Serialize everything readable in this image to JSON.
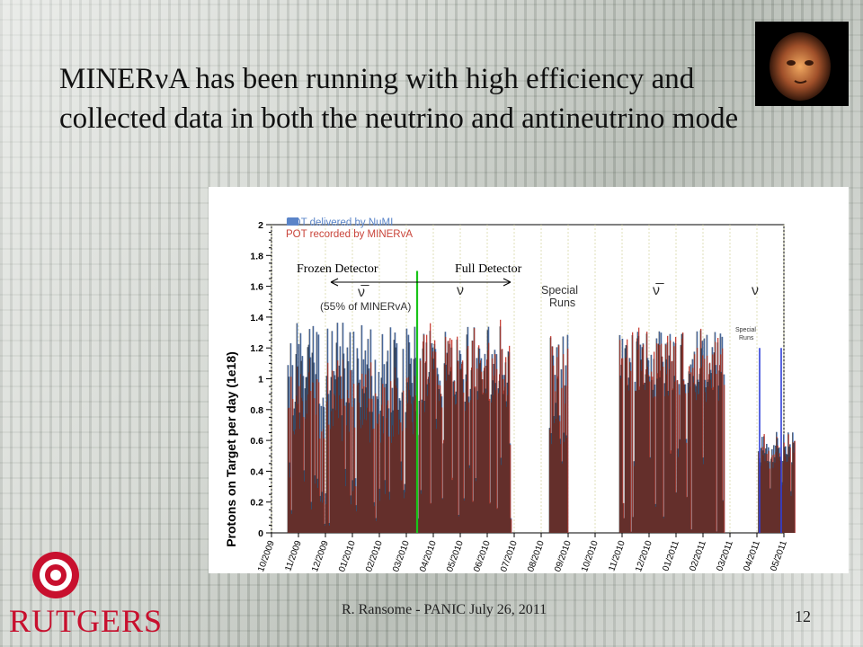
{
  "slide": {
    "title": "MINERνA has been running with high efficiency and collected data in both the neutrino and antineutrino mode",
    "footer": "R. Ransome - PANIC July 26, 2011",
    "page_number": "12",
    "logo_text": "RUTGERS"
  },
  "chart_data": {
    "type": "bar",
    "ylabel": "Protons on Target per day (1e18)",
    "ylim": [
      0,
      2
    ],
    "yticks": [
      "0",
      "0.2",
      "0.4",
      "0.6",
      "0.8",
      "1",
      "1.2",
      "1.4",
      "1.6",
      "1.8",
      "2"
    ],
    "xticks": [
      "10/2009",
      "11/2009",
      "12/2009",
      "01/2010",
      "02/2010",
      "03/2010",
      "04/2010",
      "05/2010",
      "06/2010",
      "07/2010",
      "08/2010",
      "09/2010",
      "10/2010",
      "11/2010",
      "12/2010",
      "01/2011",
      "02/2011",
      "03/2011",
      "04/2011",
      "05/2011"
    ],
    "legend": [
      "POT delivered by NuMI",
      "POT recorded by MINERvA"
    ],
    "legend_colors": [
      "#5a84c8",
      "#c9443a"
    ],
    "annotations": {
      "frozen": "Frozen Detector",
      "full": "Full Detector",
      "antinu1": "ν̅",
      "minerva_pct": "(55% of MINERvA)",
      "nu1": "ν",
      "special": "Special",
      "runs": "Runs",
      "antinu2": "ν̅",
      "nu2": "ν",
      "special_small": "Special",
      "runs_small": "Runs"
    },
    "grid": true,
    "green_line_month": 5.4,
    "blue_line_months": [
      18.1,
      18.9
    ],
    "segments": [
      {
        "start": 0.6,
        "end": 5.4,
        "base": 1.05,
        "amp": 0.32,
        "recorded_ratio": 0.8
      },
      {
        "start": 5.4,
        "end": 8.9,
        "base": 1.1,
        "amp": 0.25,
        "recorded_ratio": 0.97
      },
      {
        "start": 10.3,
        "end": 11.0,
        "base": 0.95,
        "amp": 0.35,
        "recorded_ratio": 0.95
      },
      {
        "start": 12.9,
        "end": 16.8,
        "base": 1.12,
        "amp": 0.2,
        "recorded_ratio": 0.97
      },
      {
        "start": 18.05,
        "end": 19.4,
        "base": 0.55,
        "amp": 0.12,
        "recorded_ratio": 0.95
      }
    ]
  }
}
